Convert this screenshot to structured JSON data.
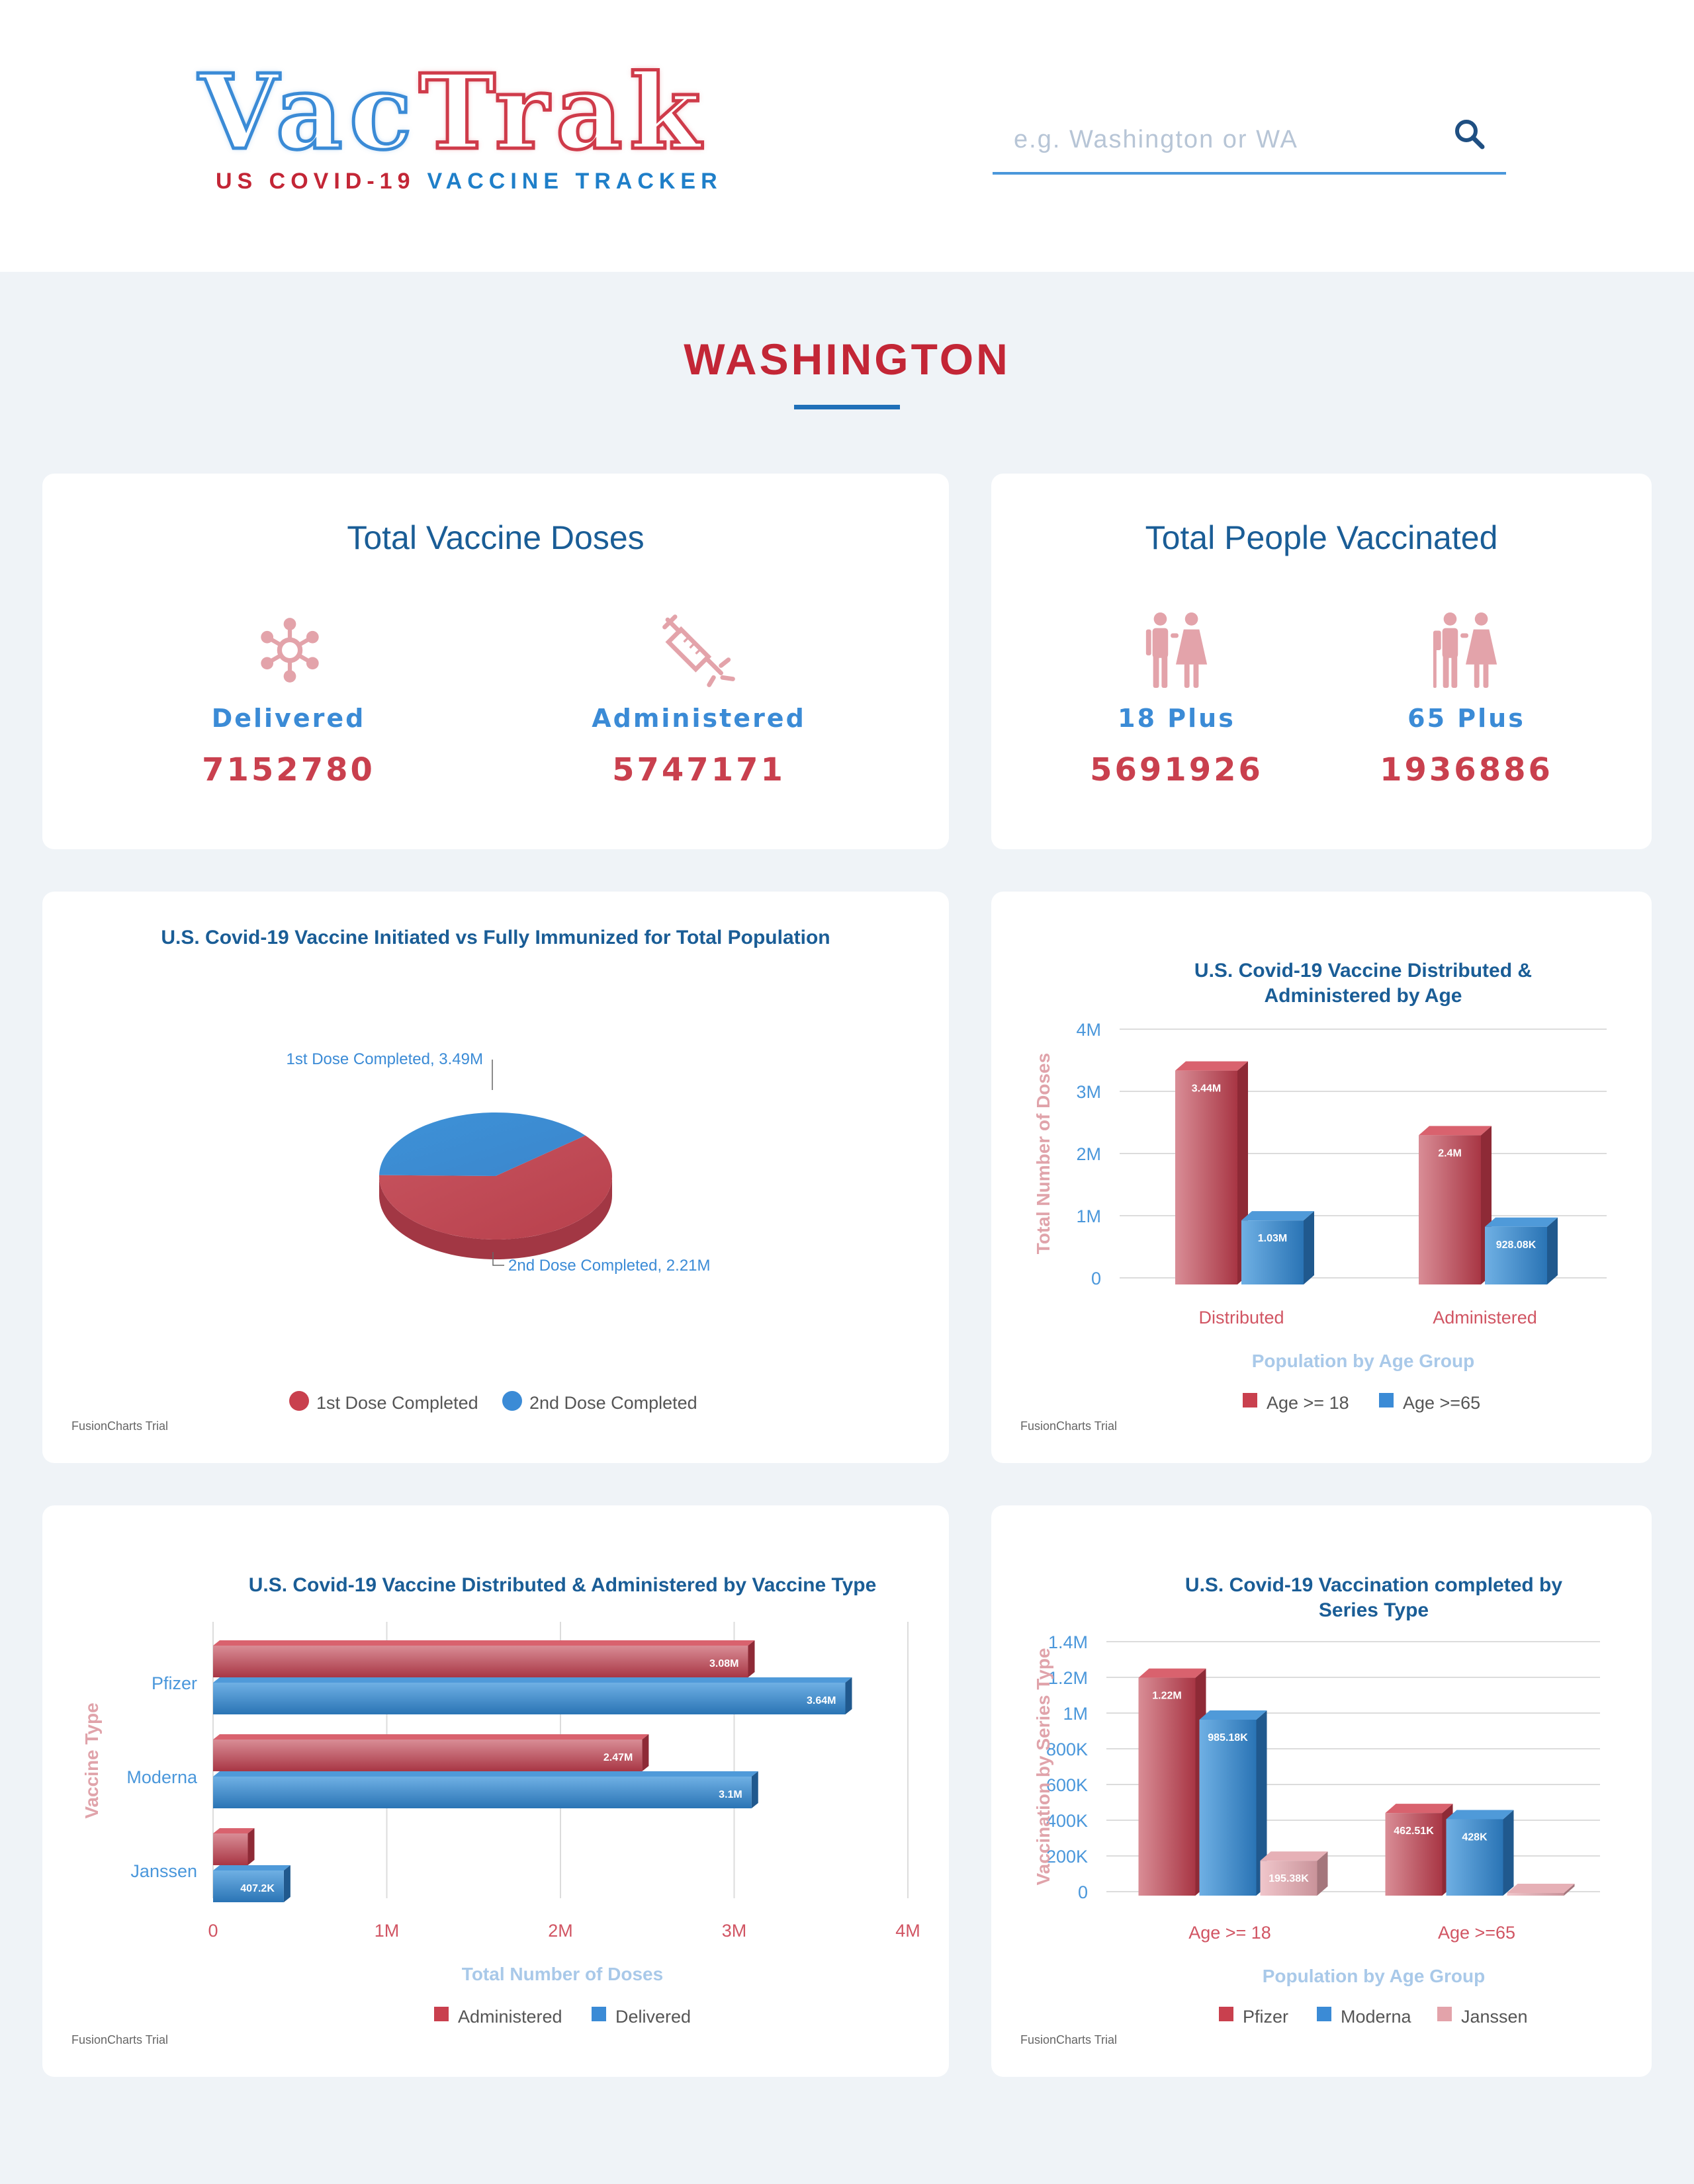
{
  "header": {
    "logo_part1": "Vac",
    "logo_part2": "Trak",
    "tagline_red": "US COVID-19",
    "tagline_blue": "VACCINE TRACKER",
    "search_placeholder": "e.g. Washington or WA",
    "search_icon": "search-icon"
  },
  "state": {
    "name": "WASHINGTON"
  },
  "doses_card": {
    "title": "Total Vaccine Doses",
    "delivered": {
      "label": "Delivered",
      "value": "7152780",
      "icon": "virus-icon"
    },
    "administered": {
      "label": "Administered",
      "value": "5747171",
      "icon": "syringe-icon"
    }
  },
  "people_card": {
    "title": "Total People Vaccinated",
    "plus18": {
      "label": "18 Plus",
      "value": "5691926",
      "icon": "adult-couple-icon"
    },
    "plus65": {
      "label": "65 Plus",
      "value": "1936886",
      "icon": "elderly-couple-icon"
    }
  },
  "colors": {
    "red": "#c9404e",
    "blue": "#3b8bd6",
    "pink": "#e3a3aa",
    "title_blue": "#1a5d96",
    "state_red": "#c32636"
  },
  "watermark": "FusionCharts Trial",
  "chart_data": [
    {
      "type": "pie",
      "title": "U.S. Covid-19 Vaccine Initiated vs Fully Immunized for Total Population",
      "slices": [
        {
          "name": "1st Dose Completed",
          "value": 3.49,
          "label": "1st Dose Completed, 3.49M"
        },
        {
          "name": "2nd Dose Completed",
          "value": 2.21,
          "label": "2nd Dose Completed, 2.21M"
        }
      ],
      "legend": [
        "1st Dose Completed",
        "2nd Dose Completed"
      ],
      "legend_position": "bottom"
    },
    {
      "type": "bar",
      "title": "U.S. Covid-19 Vaccine Distributed & Administered by Age",
      "categories": [
        "Distributed",
        "Administered"
      ],
      "series": [
        {
          "name": "Age >= 18",
          "values": [
            3.44,
            2.4
          ],
          "labels": [
            "3.44M",
            "2.4M"
          ]
        },
        {
          "name": "Age >=65",
          "values": [
            1.03,
            0.92808
          ],
          "labels": [
            "1.03M",
            "928.08K"
          ]
        }
      ],
      "xlabel": "Population by Age Group",
      "ylabel": "Total Number of Doses",
      "yticks": [
        "0",
        "1M",
        "2M",
        "3M",
        "4M"
      ],
      "ylim": [
        0,
        4
      ],
      "legend_position": "bottom"
    },
    {
      "type": "bar",
      "orientation": "horizontal",
      "title": "U.S. Covid-19 Vaccine Distributed & Administered by Vaccine Type",
      "categories": [
        "Pfizer",
        "Moderna",
        "Janssen"
      ],
      "series": [
        {
          "name": "Administered",
          "values": [
            3.08,
            2.47,
            0.2
          ],
          "labels": [
            "3.08M",
            "2.47M",
            ""
          ]
        },
        {
          "name": "Delivered",
          "values": [
            3.64,
            3.1,
            0.4072
          ],
          "labels": [
            "3.64M",
            "3.1M",
            "407.2K"
          ]
        }
      ],
      "xlabel": "Total Number of Doses",
      "ylabel": "Vaccine Type",
      "xticks": [
        "0",
        "1M",
        "2M",
        "3M",
        "4M"
      ],
      "xlim": [
        0,
        4
      ],
      "legend_position": "bottom"
    },
    {
      "type": "bar",
      "title": "U.S. Covid-19 Vaccination completed by Series Type",
      "categories": [
        "Age >= 18",
        "Age >=65"
      ],
      "series": [
        {
          "name": "Pfizer",
          "values": [
            1220000,
            462510
          ],
          "labels": [
            "1.22M",
            "462.51K"
          ]
        },
        {
          "name": "Moderna",
          "values": [
            985180,
            428000
          ],
          "labels": [
            "985.18K",
            "428K"
          ]
        },
        {
          "name": "Janssen",
          "values": [
            195380,
            0
          ],
          "labels": [
            "195.38K",
            ""
          ]
        }
      ],
      "xlabel": "Population by Age Group",
      "ylabel": "Vaccination by Series Type",
      "yticks": [
        "0",
        "200K",
        "400K",
        "600K",
        "800K",
        "1M",
        "1.2M",
        "1.4M"
      ],
      "ylim": [
        0,
        1400000
      ],
      "legend_position": "bottom"
    }
  ]
}
